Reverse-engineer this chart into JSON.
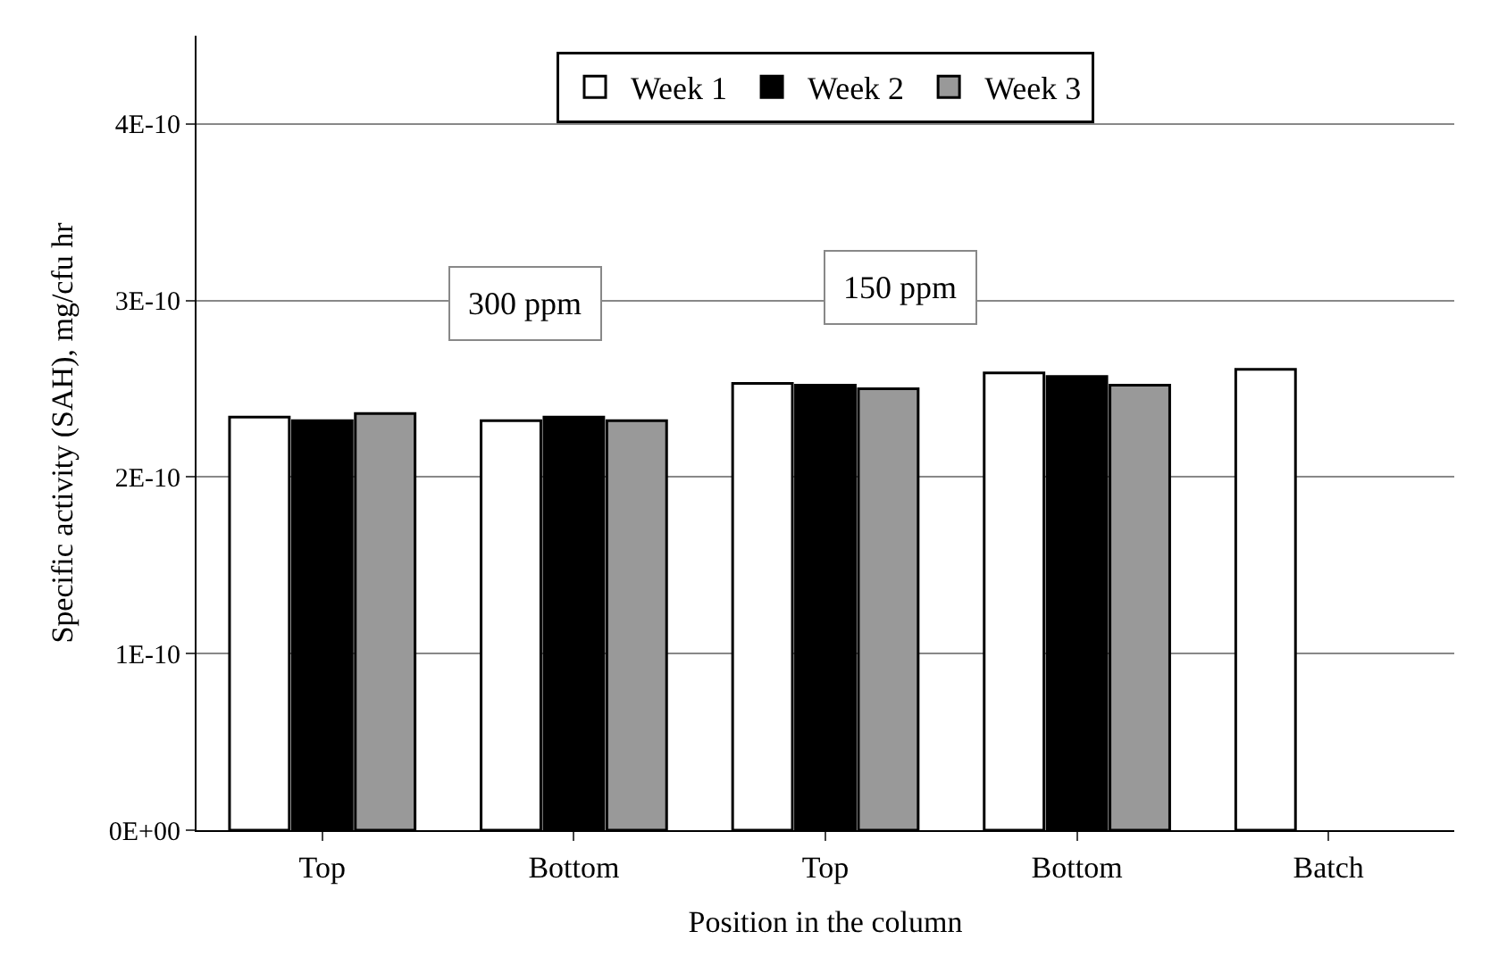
{
  "chart_data": {
    "type": "bar",
    "xlabel": "Position in the column",
    "ylabel": "Specific activity (SAH), mg/cfu hr",
    "categories": [
      "Top",
      "Bottom",
      "Top",
      "Bottom",
      "Batch"
    ],
    "series": [
      {
        "name": "Week 1",
        "color": "#ffffff",
        "values": [
          2.34e-10,
          2.32e-10,
          2.53e-10,
          2.59e-10,
          2.61e-10
        ]
      },
      {
        "name": "Week 2",
        "color": "#000000",
        "values": [
          2.32e-10,
          2.34e-10,
          2.52e-10,
          2.57e-10,
          null
        ]
      },
      {
        "name": "Week 3",
        "color": "#999999",
        "values": [
          2.36e-10,
          2.32e-10,
          2.5e-10,
          2.52e-10,
          null
        ]
      }
    ],
    "ylim": [
      0,
      4.5e-10
    ],
    "yticks": [
      {
        "value": 0,
        "label": "0E+00"
      },
      {
        "value": 1e-10,
        "label": "1E-10"
      },
      {
        "value": 2e-10,
        "label": "2E-10"
      },
      {
        "value": 3e-10,
        "label": "3E-10"
      },
      {
        "value": 4e-10,
        "label": "4E-10"
      }
    ],
    "grid": "y",
    "legend": "top",
    "annotations": [
      "300 ppm",
      "150 ppm"
    ]
  }
}
